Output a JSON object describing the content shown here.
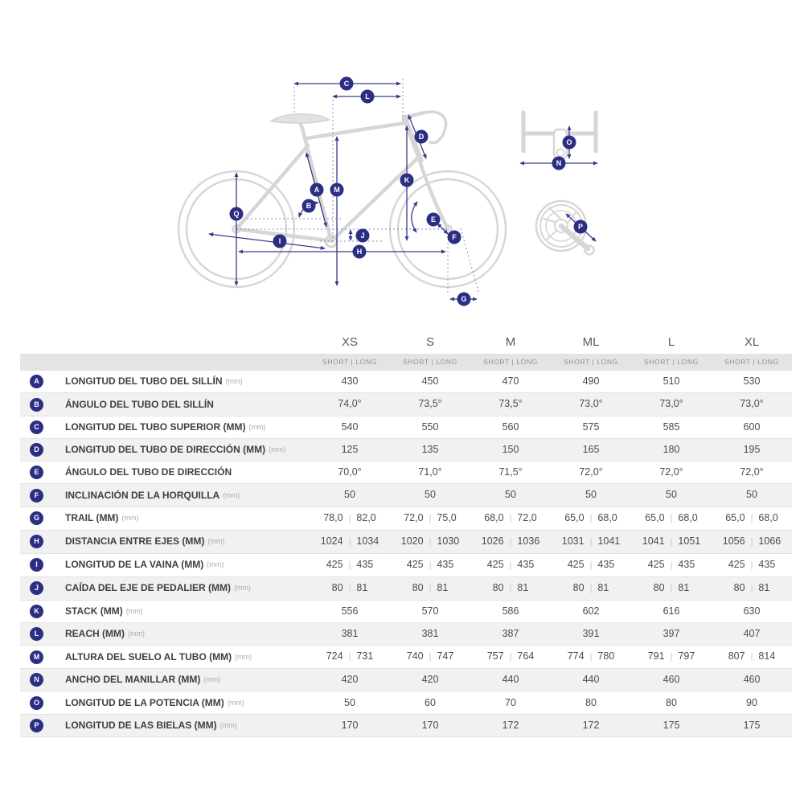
{
  "colors": {
    "accent_navy": "#2b2e83",
    "arrow_navy": "#383c8a",
    "reference_dotted": "#8b8ec0",
    "bike_gray": "#d6d6d6",
    "row_stripe": "#f1f1f1",
    "subheader_bg": "#e4e4e4"
  },
  "diagram": {
    "markers": {
      "A": "A",
      "B": "B",
      "C": "C",
      "D": "D",
      "E": "E",
      "F": "F",
      "G": "G",
      "H": "H",
      "I": "I",
      "J": "J",
      "K": "K",
      "L": "L",
      "M": "M",
      "N": "N",
      "O": "O",
      "P": "P",
      "Q": "Q"
    }
  },
  "table": {
    "columns": [
      "XS",
      "S",
      "M",
      "ML",
      "L",
      "XL"
    ],
    "subheader": "SHORT | LONG",
    "rows": [
      {
        "id": "A",
        "label": "LONGITUD DEL TUBO DEL SILLÍN",
        "unit": "(mm)",
        "values": [
          "430",
          "450",
          "470",
          "490",
          "510",
          "530"
        ]
      },
      {
        "id": "B",
        "label": "ÁNGULO DEL TUBO DEL SILLÍN",
        "unit": "",
        "values": [
          "74,0°",
          "73,5°",
          "73,5°",
          "73,0°",
          "73,0°",
          "73,0°"
        ]
      },
      {
        "id": "C",
        "label": "LONGITUD DEL TUBO SUPERIOR (MM)",
        "unit": "(mm)",
        "values": [
          "540",
          "550",
          "560",
          "575",
          "585",
          "600"
        ]
      },
      {
        "id": "D",
        "label": "LONGITUD DEL TUBO DE DIRECCIÓN (MM)",
        "unit": "(mm)",
        "values": [
          "125",
          "135",
          "150",
          "165",
          "180",
          "195"
        ]
      },
      {
        "id": "E",
        "label": "ÁNGULO DEL TUBO DE DIRECCIÓN",
        "unit": "",
        "values": [
          "70,0°",
          "71,0°",
          "71,5°",
          "72,0°",
          "72,0°",
          "72,0°"
        ]
      },
      {
        "id": "F",
        "label": "INCLINACIÓN DE LA HORQUILLA",
        "unit": "(mm)",
        "values": [
          "50",
          "50",
          "50",
          "50",
          "50",
          "50"
        ]
      },
      {
        "id": "G",
        "label": "TRAIL (MM)",
        "unit": "(mm)",
        "values": [
          [
            "78,0",
            "82,0"
          ],
          [
            "72,0",
            "75,0"
          ],
          [
            "68,0",
            "72,0"
          ],
          [
            "65,0",
            "68,0"
          ],
          [
            "65,0",
            "68,0"
          ],
          [
            "65,0",
            "68,0"
          ]
        ]
      },
      {
        "id": "H",
        "label": "DISTANCIA ENTRE EJES (MM)",
        "unit": "(mm)",
        "values": [
          [
            "1024",
            "1034"
          ],
          [
            "1020",
            "1030"
          ],
          [
            "1026",
            "1036"
          ],
          [
            "1031",
            "1041"
          ],
          [
            "1041",
            "1051"
          ],
          [
            "1056",
            "1066"
          ]
        ]
      },
      {
        "id": "I",
        "label": "LONGITUD DE LA VAINA (MM)",
        "unit": "(mm)",
        "values": [
          [
            "425",
            "435"
          ],
          [
            "425",
            "435"
          ],
          [
            "425",
            "435"
          ],
          [
            "425",
            "435"
          ],
          [
            "425",
            "435"
          ],
          [
            "425",
            "435"
          ]
        ]
      },
      {
        "id": "J",
        "label": "CAÍDA DEL EJE DE PEDALIER (MM)",
        "unit": "(mm)",
        "values": [
          [
            "80",
            "81"
          ],
          [
            "80",
            "81"
          ],
          [
            "80",
            "81"
          ],
          [
            "80",
            "81"
          ],
          [
            "80",
            "81"
          ],
          [
            "80",
            "81"
          ]
        ]
      },
      {
        "id": "K",
        "label": "STACK (MM)",
        "unit": "(mm)",
        "values": [
          "556",
          "570",
          "586",
          "602",
          "616",
          "630"
        ]
      },
      {
        "id": "L",
        "label": "REACH (MM)",
        "unit": "(mm)",
        "values": [
          "381",
          "381",
          "387",
          "391",
          "397",
          "407"
        ]
      },
      {
        "id": "M",
        "label": "ALTURA DEL SUELO AL TUBO (MM)",
        "unit": "(mm)",
        "values": [
          [
            "724",
            "731"
          ],
          [
            "740",
            "747"
          ],
          [
            "757",
            "764"
          ],
          [
            "774",
            "780"
          ],
          [
            "791",
            "797"
          ],
          [
            "807",
            "814"
          ]
        ]
      },
      {
        "id": "N",
        "label": "ANCHO DEL MANILLAR (MM)",
        "unit": "(mm)",
        "values": [
          "420",
          "420",
          "440",
          "440",
          "460",
          "460"
        ]
      },
      {
        "id": "O",
        "label": "LONGITUD DE LA POTENCIA (MM)",
        "unit": "(mm)",
        "values": [
          "50",
          "60",
          "70",
          "80",
          "80",
          "90"
        ]
      },
      {
        "id": "P",
        "label": "LONGITUD DE LAS BIELAS (MM)",
        "unit": "(mm)",
        "values": [
          "170",
          "170",
          "172",
          "172",
          "175",
          "175"
        ]
      }
    ]
  }
}
